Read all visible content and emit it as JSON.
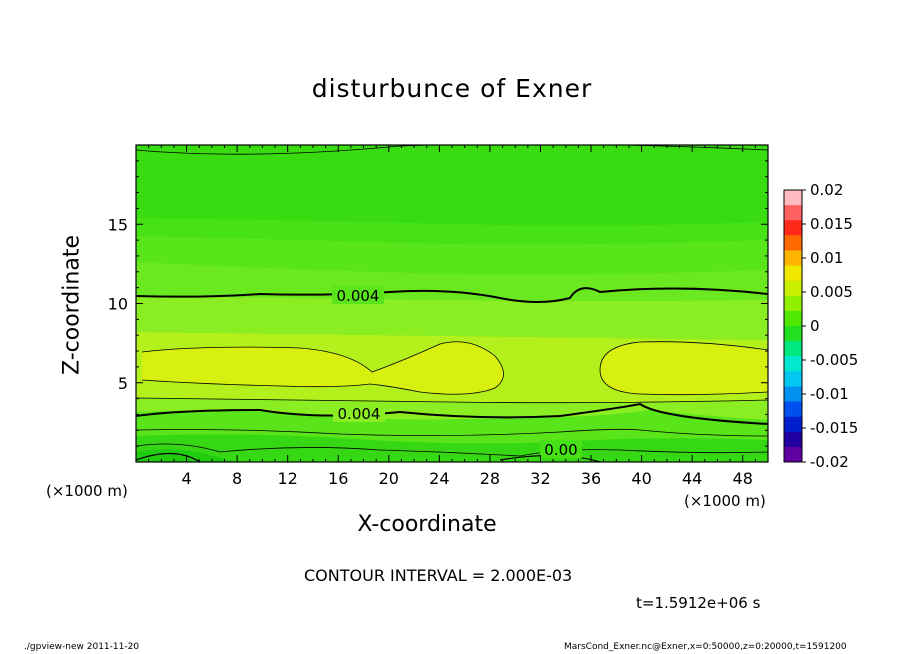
{
  "chart_data": {
    "type": "heatmap",
    "title": "disturbunce of Exner",
    "xlabel": "X-coordinate",
    "ylabel": "Z-coordinate",
    "x_unit": "(×1000 m)",
    "x_ticks": [
      4,
      8,
      12,
      16,
      20,
      24,
      28,
      32,
      36,
      40,
      44,
      48
    ],
    "y_ticks": [
      5,
      10,
      15
    ],
    "xlim": [
      0,
      50
    ],
    "ylim": [
      0,
      20
    ],
    "colorbar": {
      "ticks": [
        "0.02",
        "0.015",
        "0.01",
        "0.005",
        "0",
        "-0.005",
        "-0.01",
        "-0.015",
        "-0.02"
      ],
      "colors": [
        "#ffbcc0",
        "#ff6060",
        "#ff2a1a",
        "#ff6a00",
        "#ffb400",
        "#f0e800",
        "#c8f000",
        "#90f000",
        "#50e800",
        "#20e020",
        "#00e880",
        "#00e8d0",
        "#00c8f0",
        "#0090f0",
        "#0050f0",
        "#0020d0",
        "#2000a0",
        "#6000a0"
      ]
    },
    "contour_labels": [
      "0.004",
      "0.004",
      "0.00"
    ],
    "contour_interval": "CONTOUR INTERVAL = 2.000E-03",
    "time": "t=1.5912e+06 s"
  },
  "footer": {
    "left": "./gpview-new  2011-11-20",
    "right": "MarsCond_Exner.nc@Exner,x=0:50000,z=0:20000,t=1591200"
  }
}
